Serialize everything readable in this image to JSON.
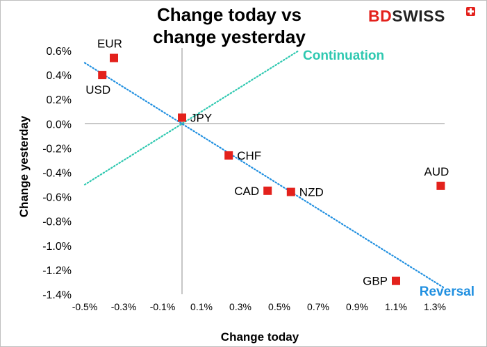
{
  "chart_data": {
    "type": "scatter",
    "title_lines": [
      "Change today vs",
      "change yesterday"
    ],
    "xlabel": "Change today",
    "ylabel": "Change yesterday",
    "xlim": [
      -0.5,
      1.35
    ],
    "ylim": [
      -1.4,
      0.6
    ],
    "x_ticks": [
      -0.5,
      -0.3,
      -0.1,
      0.1,
      0.3,
      0.5,
      0.7,
      0.9,
      1.1,
      1.3
    ],
    "x_tick_labels": [
      "-0.5%",
      "-0.3%",
      "-0.1%",
      "0.1%",
      "0.3%",
      "0.5%",
      "0.7%",
      "0.9%",
      "1.1%",
      "1.3%"
    ],
    "y_ticks": [
      0.6,
      0.4,
      0.2,
      0.0,
      -0.2,
      -0.4,
      -0.6,
      -0.8,
      -1.0,
      -1.2,
      -1.4
    ],
    "y_tick_labels": [
      "0.6%",
      "0.4%",
      "0.2%",
      "0.0%",
      "-0.2%",
      "-0.4%",
      "-0.6%",
      "-0.8%",
      "-1.0%",
      "-1.2%",
      "-1.4%"
    ],
    "points": [
      {
        "label": "EUR",
        "x": -0.35,
        "y": 0.54,
        "label_pos": "above"
      },
      {
        "label": "USD",
        "x": -0.41,
        "y": 0.4,
        "label_pos": "below"
      },
      {
        "label": "JPY",
        "x": 0.0,
        "y": 0.05,
        "label_pos": "right"
      },
      {
        "label": "CHF",
        "x": 0.24,
        "y": -0.26,
        "label_pos": "right"
      },
      {
        "label": "CAD",
        "x": 0.44,
        "y": -0.55,
        "label_pos": "left"
      },
      {
        "label": "NZD",
        "x": 0.56,
        "y": -0.56,
        "label_pos": "right"
      },
      {
        "label": "AUD",
        "x": 1.33,
        "y": -0.51,
        "label_pos": "above"
      },
      {
        "label": "GBP",
        "x": 1.1,
        "y": -1.29,
        "label_pos": "left"
      }
    ],
    "trend_lines": [
      {
        "name": "Continuation",
        "from": [
          -0.5,
          -0.5
        ],
        "to": [
          0.6,
          0.6
        ],
        "color": "#2ec8b0"
      },
      {
        "name": "Reversal",
        "from": [
          -0.5,
          0.5
        ],
        "to": [
          1.35,
          -1.35
        ],
        "color": "#1f8fe0"
      }
    ],
    "marker_color": "#e3211c",
    "legend": "none"
  },
  "logo": {
    "part1": "BD",
    "part2": "SWISS"
  }
}
